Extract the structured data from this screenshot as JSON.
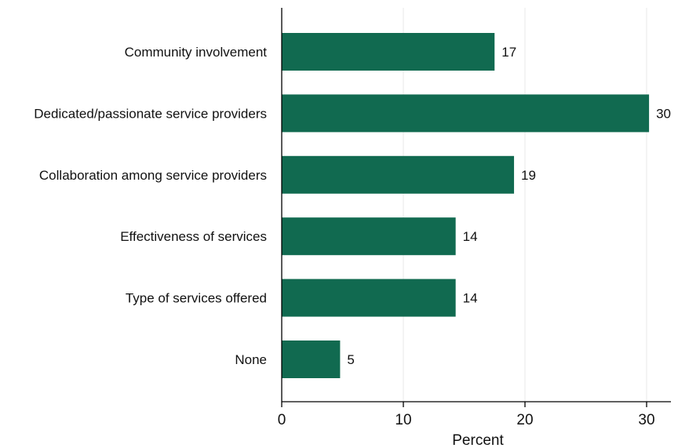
{
  "chart_data": {
    "type": "bar",
    "orientation": "horizontal",
    "categories": [
      "Community involvement",
      "Dedicated/passionate service providers",
      "Collaboration among service providers",
      "Effectiveness of services",
      "Type of services offered",
      "None"
    ],
    "values": [
      17.5,
      30.2,
      19.1,
      14.3,
      14.3,
      4.8
    ],
    "value_labels": [
      "17",
      "30",
      "19",
      "14",
      "14",
      "5"
    ],
    "xlabel": "Percent",
    "ylabel": "",
    "title": "",
    "xlim": [
      0,
      32
    ],
    "xticks": [
      0,
      10,
      20,
      30
    ],
    "xtick_labels": [
      "0",
      "10",
      "20",
      "30"
    ],
    "grid": "vertical",
    "legend": "none",
    "colors": {
      "bar": "#116a50",
      "axis": "#000000",
      "grid": "#e8e8e8",
      "text": "#111111"
    }
  }
}
